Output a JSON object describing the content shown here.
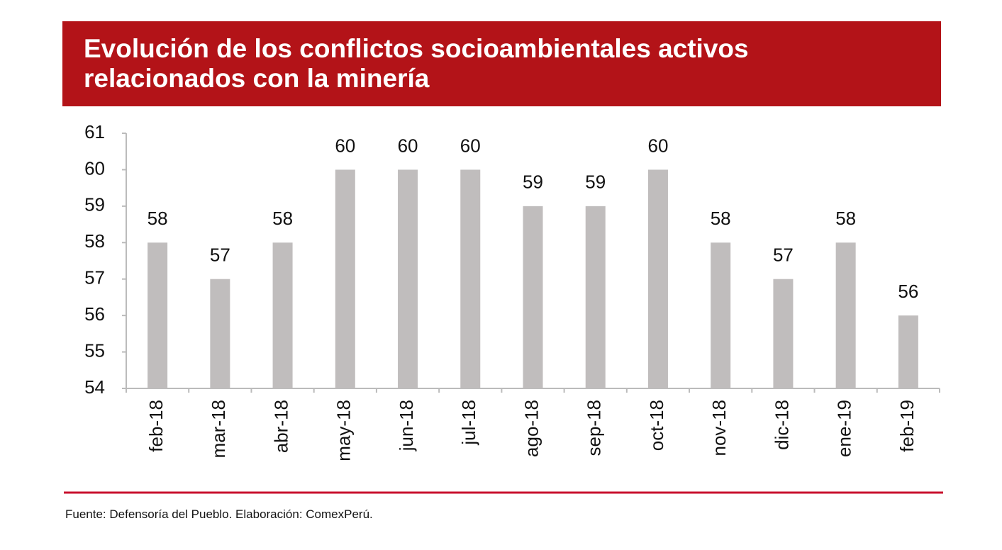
{
  "chart_data": {
    "type": "bar",
    "title": "Evolución de los conflictos socioambientales activos relacionados con la minería",
    "source": "Fuente: Defensoría del Pueblo. Elaboración: ComexPerú.",
    "categories": [
      "feb-18",
      "mar-18",
      "abr-18",
      "may-18",
      "jun-18",
      "jul-18",
      "ago-18",
      "sep-18",
      "oct-18",
      "nov-18",
      "dic-18",
      "ene-19",
      "feb-19"
    ],
    "values": [
      58,
      57,
      58,
      60,
      60,
      60,
      59,
      59,
      60,
      58,
      57,
      58,
      56
    ],
    "color": "#c0bdbd",
    "ylim": [
      54,
      61
    ],
    "yticks": [
      54,
      55,
      56,
      57,
      58,
      59,
      60,
      61
    ]
  }
}
